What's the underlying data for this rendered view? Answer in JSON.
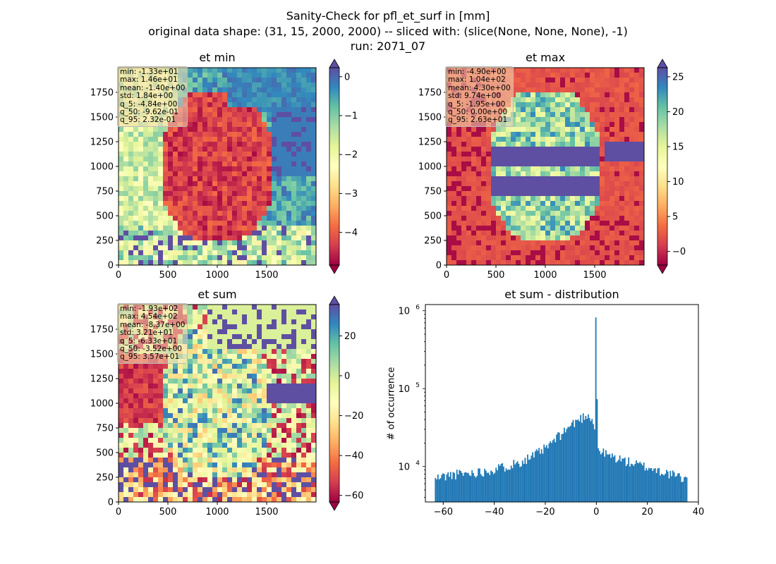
{
  "suptitle": {
    "line1": "Sanity-Check for pfl_et_surf in [mm]",
    "line2": "original data shape: (31, 15, 2000, 2000) -- sliced with: (slice(None, None, None), -1)",
    "line3": "run: 2071_07"
  },
  "colors": {
    "spectral": [
      "#9e0142",
      "#d53e4f",
      "#f46d43",
      "#fdae61",
      "#fee08b",
      "#ffffbf",
      "#e6f598",
      "#abdda4",
      "#66c2a5",
      "#3288bd",
      "#5e4fa2"
    ],
    "hist_bar": "#1f77b4"
  },
  "chart_data": [
    {
      "type": "heatmap",
      "title": "et min",
      "colormap": "Spectral",
      "x_ticks": [
        "0",
        "500",
        "1000",
        "1500"
      ],
      "y_ticks": [
        "0",
        "250",
        "500",
        "750",
        "1000",
        "1250",
        "1500",
        "1750"
      ],
      "xlim": [
        0,
        2000
      ],
      "ylim": [
        0,
        2000
      ],
      "colorbar_ticks": [
        "0",
        "−1",
        "−2",
        "−3",
        "−4"
      ],
      "colorbar_range": [
        -4.84,
        0.232
      ],
      "colorbar_extend": "both",
      "stats": [
        "min: -1.33e+01",
        "max: 1.46e+01",
        "mean: -1.40e+00",
        "std: 1.84e+00",
        "q_5: -4.84e+00",
        "q_50: -9.62e-01",
        "q_95: 2.32e-01"
      ]
    },
    {
      "type": "heatmap",
      "title": "et max",
      "colormap": "Spectral",
      "x_ticks": [
        "0",
        "500",
        "1000",
        "1500"
      ],
      "y_ticks": [
        "0",
        "250",
        "500",
        "750",
        "1000",
        "1250",
        "1500",
        "1750"
      ],
      "xlim": [
        0,
        2000
      ],
      "ylim": [
        0,
        2000
      ],
      "colorbar_ticks": [
        "−0",
        "5",
        "10",
        "15",
        "20",
        "25"
      ],
      "colorbar_range": [
        -1.95,
        26.3
      ],
      "colorbar_extend": "both",
      "stats": [
        "min: -4.90e+00",
        "max: 1.04e+02",
        "mean: 4.30e+00",
        "std: 9.74e+00",
        "q_5: -1.95e+00",
        "q_50: 0.00e+00",
        "q_95: 2.63e+01"
      ]
    },
    {
      "type": "heatmap",
      "title": "et sum",
      "colormap": "Spectral",
      "x_ticks": [
        "0",
        "500",
        "1000",
        "1500"
      ],
      "y_ticks": [
        "0",
        "250",
        "500",
        "750",
        "1000",
        "1250",
        "1500",
        "1750"
      ],
      "xlim": [
        0,
        2000
      ],
      "ylim": [
        0,
        2000
      ],
      "colorbar_ticks": [
        "20",
        "0",
        "−20",
        "−40",
        "−60"
      ],
      "colorbar_range": [
        -63.3,
        35.7
      ],
      "colorbar_extend": "both",
      "stats": [
        "min: -1.93e+02",
        "max: 4.54e+02",
        "mean: -8.37e+00",
        "std: 3.21e+01",
        "q_5: -6.33e+01",
        "q_50: -3.52e+00",
        "q_95: 3.57e+01"
      ]
    },
    {
      "type": "bar",
      "title": "et sum - distribution",
      "ylabel": "# of occurrence",
      "yscale": "log",
      "xlim": [
        -67,
        40
      ],
      "ylim": [
        3500,
        1200000
      ],
      "x_ticks": [
        "−60",
        "−40",
        "−20",
        "0",
        "20",
        "40"
      ],
      "y_ticks": [
        "10^4",
        "10^5",
        "10^6"
      ],
      "bin_range": [
        -63.3,
        35.7
      ],
      "curve_points": [
        {
          "x": -63,
          "y": 7000
        },
        {
          "x": -60,
          "y": 7500
        },
        {
          "x": -55,
          "y": 8000
        },
        {
          "x": -50,
          "y": 8200
        },
        {
          "x": -45,
          "y": 8600
        },
        {
          "x": -40,
          "y": 9200
        },
        {
          "x": -35,
          "y": 10200
        },
        {
          "x": -30,
          "y": 11500
        },
        {
          "x": -25,
          "y": 13500
        },
        {
          "x": -20,
          "y": 17000
        },
        {
          "x": -15,
          "y": 24000
        },
        {
          "x": -10,
          "y": 34000
        },
        {
          "x": -6,
          "y": 42000
        },
        {
          "x": -3,
          "y": 47000
        },
        {
          "x": -1.5,
          "y": 40000
        },
        {
          "x": -0.5,
          "y": 28000
        },
        {
          "x": 0,
          "y": 820000
        },
        {
          "x": 0.5,
          "y": 16500
        },
        {
          "x": 2,
          "y": 15500
        },
        {
          "x": 5,
          "y": 13800
        },
        {
          "x": 10,
          "y": 12200
        },
        {
          "x": 15,
          "y": 10800
        },
        {
          "x": 20,
          "y": 9800
        },
        {
          "x": 25,
          "y": 8800
        },
        {
          "x": 30,
          "y": 7800
        },
        {
          "x": 35.7,
          "y": 6800
        }
      ]
    }
  ]
}
